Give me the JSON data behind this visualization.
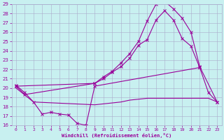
{
  "background_color": "#c8f0f0",
  "grid_color": "#aaaacc",
  "line_color": "#990099",
  "xlim_min": -0.5,
  "xlim_max": 23.5,
  "ylim_min": 16,
  "ylim_max": 29,
  "xticks": [
    0,
    1,
    2,
    3,
    4,
    5,
    6,
    7,
    8,
    9,
    10,
    11,
    12,
    13,
    14,
    15,
    16,
    17,
    18,
    19,
    20,
    21,
    22,
    23
  ],
  "yticks": [
    16,
    17,
    18,
    19,
    20,
    21,
    22,
    23,
    24,
    25,
    26,
    27,
    28,
    29
  ],
  "xlabel": "Windchill (Refroidissement éolien,°C)",
  "s1_x": [
    0,
    1,
    2,
    3,
    4,
    5,
    6,
    7,
    8,
    9,
    21,
    22,
    23
  ],
  "s1_y": [
    20.3,
    19.5,
    18.5,
    17.2,
    17.4,
    17.2,
    17.1,
    16.2,
    16.0,
    20.2,
    22.2,
    19.5,
    18.5
  ],
  "s2_x": [
    0,
    2,
    9,
    10,
    11,
    12,
    13,
    14,
    15,
    16,
    17,
    18,
    19,
    20,
    21,
    22,
    23
  ],
  "s2_y": [
    20.0,
    18.5,
    18.2,
    18.3,
    18.4,
    18.5,
    18.7,
    18.8,
    18.9,
    18.9,
    18.9,
    18.9,
    18.9,
    18.9,
    18.9,
    18.9,
    18.5
  ],
  "s3_x": [
    0,
    1,
    9,
    10,
    11,
    12,
    13,
    14,
    15,
    16,
    17,
    18,
    19,
    20,
    21
  ],
  "s3_y": [
    20.2,
    19.3,
    20.5,
    21.0,
    21.7,
    22.3,
    23.2,
    24.6,
    25.2,
    27.3,
    28.3,
    27.3,
    25.3,
    24.5,
    22.2
  ],
  "s4_x": [
    0,
    9,
    10,
    11,
    12,
    13,
    14,
    15,
    16,
    17,
    18,
    19,
    20,
    21,
    23
  ],
  "s4_y": [
    20.2,
    20.5,
    21.2,
    21.8,
    22.7,
    23.7,
    25.0,
    27.2,
    29.0,
    29.3,
    28.5,
    27.5,
    26.0,
    22.3,
    18.5
  ]
}
